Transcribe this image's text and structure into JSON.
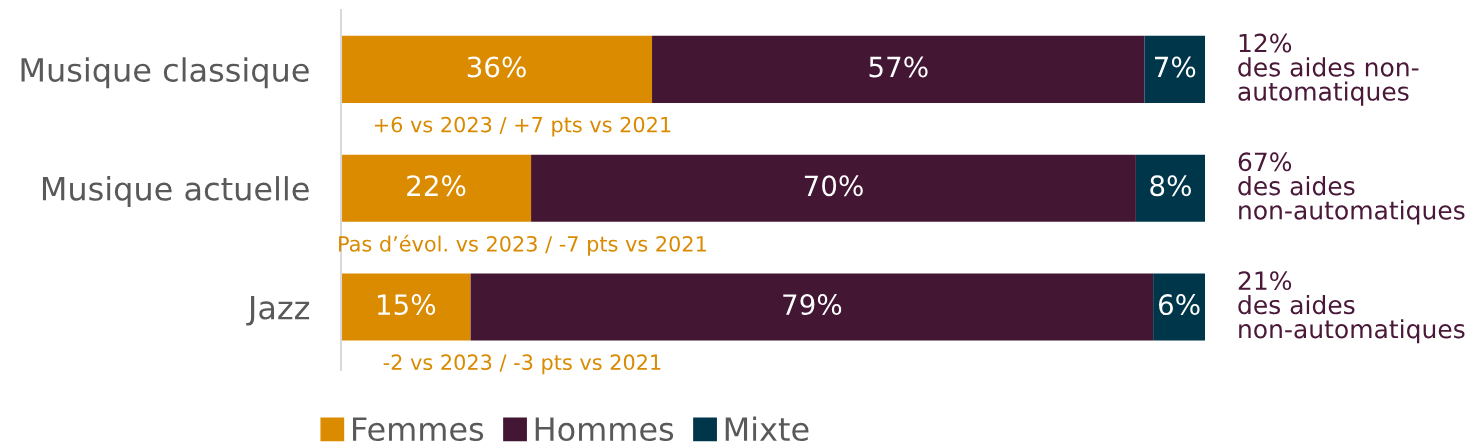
{
  "chart_data": {
    "type": "bar",
    "orientation": "horizontal",
    "stacked": true,
    "categories": [
      "Musique classique",
      "Musique actuelle",
      "Jazz"
    ],
    "series": [
      {
        "name": "Femmes",
        "color": "#db8b00",
        "values": [
          36,
          22,
          15
        ],
        "value_labels": [
          "36%",
          "22%",
          "15%"
        ]
      },
      {
        "name": "Hommes",
        "color": "#431634",
        "values": [
          57,
          70,
          79
        ],
        "value_labels": [
          "57%",
          "70%",
          "79%"
        ]
      },
      {
        "name": "Mixte",
        "color": "#00364a",
        "values": [
          7,
          8,
          6
        ],
        "value_labels": [
          "7%",
          "8%",
          "6%"
        ]
      }
    ],
    "xlim": [
      0,
      100
    ],
    "tick_labels": "y",
    "legend": "bottom",
    "annotations": [
      "12%\ndes aides non-\nautomatiques",
      "67%\ndes aides\nnon-automatiques",
      "21%\ndes aides\nnon-automatiques",
      "+6 vs 2023 / +7 pts vs 2021",
      "Pas d’évol. vs 2023 / -7 pts vs 2021",
      "-2 vs 2023 / -3 pts vs 2021"
    ]
  }
}
